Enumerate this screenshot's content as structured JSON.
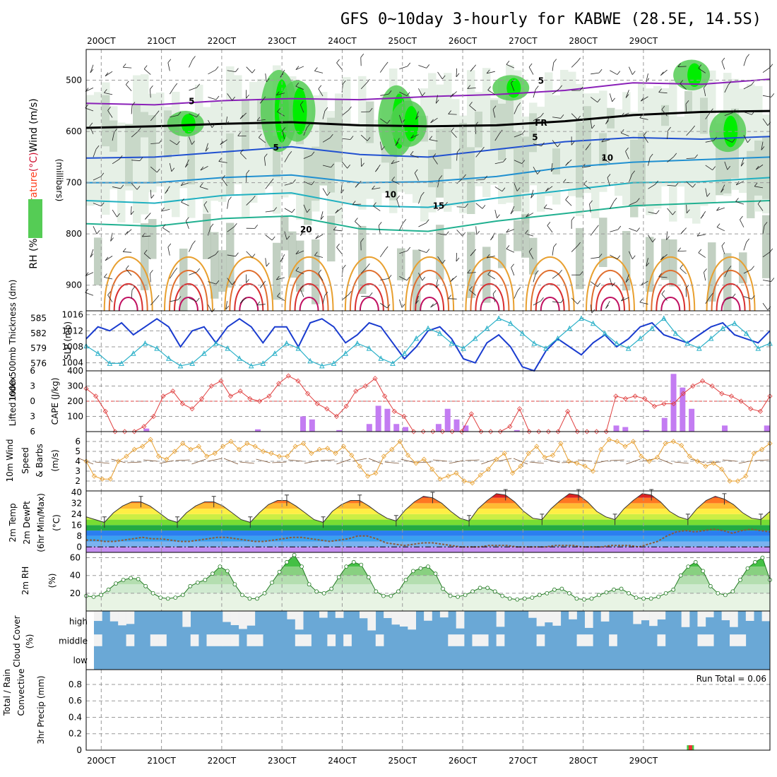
{
  "title": "GFS 0~10day 3-hourly for KABWE (28.5E, 14.5S)",
  "colors": {
    "frame": "#000000",
    "grid": "#9a9a9a",
    "rh_light": "#e6f0e6",
    "rh_mid": "#c8d8c8",
    "rh_dark": "#a8bca8",
    "rh_green": "#55cc55",
    "rh_bright": "#00ee00",
    "slp_line": "#1a3ccf",
    "thickness_line": "#2ab0c8",
    "lifted_line": "#e04040",
    "cape_bar": "#c37cf2",
    "wind_speed": "#e8a030",
    "wind_barb": "#7a5030",
    "cloud_blue": "#6aa8d6",
    "cloud_white": "#f2f2f2",
    "rh2m_fill": "#c8e6c0",
    "rh2m_line": "#227a22",
    "precip_green": "#44cc44",
    "precip_red": "#ee3333"
  },
  "chart_data": [
    {
      "type": "line",
      "panel": "upper-air",
      "ylabel": "(millibars)",
      "left_labels": [
        {
          "text": "RH (%)",
          "color": "#000000"
        },
        {
          "text": "Temperature",
          "color": "#ff4020"
        },
        {
          "text": "(°C)",
          "color": "#d01030"
        },
        {
          "text": "Wind (m/s)",
          "color": "#000000"
        }
      ],
      "yticks": [
        500,
        600,
        700,
        800,
        900
      ],
      "ylim": [
        440,
        950
      ],
      "x_top": [
        "20OCT",
        "21OCT",
        "22OCT",
        "23OCT",
        "24OCT",
        "25OCT",
        "26OCT",
        "27OCT",
        "28OCT",
        "29OCT"
      ],
      "contour_labels": [
        {
          "text": "5",
          "x": 1.5,
          "p": 540,
          "color": "#8a20b8"
        },
        {
          "text": "5",
          "x": 7.3,
          "p": 500,
          "color": "#8a20b8"
        },
        {
          "text": "FR",
          "x": 7.3,
          "p": 582,
          "color": "#000000"
        },
        {
          "text": "5",
          "x": 2.9,
          "p": 630,
          "color": "#2050d0"
        },
        {
          "text": "5",
          "x": 7.2,
          "p": 610,
          "color": "#2050d0"
        },
        {
          "text": "10",
          "x": 8.4,
          "p": 650,
          "color": "#2a90c8"
        },
        {
          "text": "10",
          "x": 4.8,
          "p": 722,
          "color": "#20a0c0"
        },
        {
          "text": "15",
          "x": 5.6,
          "p": 744,
          "color": "#20b0a0"
        },
        {
          "text": "20",
          "x": 3.4,
          "p": 790,
          "color": "#20b080"
        }
      ],
      "temp_lines": [
        {
          "name": "-5",
          "color": "#8a20b8",
          "values": [
            545,
            548,
            540,
            536,
            538,
            532,
            528,
            520,
            505,
            508,
            498
          ]
        },
        {
          "name": "0",
          "color": "#000000",
          "values": [
            593,
            590,
            585,
            582,
            588,
            590,
            588,
            580,
            568,
            562,
            560
          ]
        },
        {
          "name": "5",
          "color": "#2050d0",
          "values": [
            652,
            650,
            640,
            630,
            645,
            650,
            635,
            620,
            612,
            615,
            610
          ]
        },
        {
          "name": "10",
          "color": "#2090d0",
          "values": [
            700,
            700,
            690,
            685,
            700,
            698,
            688,
            670,
            660,
            655,
            650
          ]
        },
        {
          "name": "15",
          "color": "#20b0c0",
          "values": [
            735,
            740,
            725,
            720,
            745,
            748,
            730,
            715,
            700,
            698,
            690
          ]
        },
        {
          "name": "20",
          "color": "#20b090",
          "values": [
            780,
            785,
            770,
            765,
            790,
            795,
            775,
            760,
            745,
            740,
            735
          ]
        }
      ]
    },
    {
      "type": "line",
      "panel": "slp-thickness",
      "title_left": "1000-500mb Thickness (dm)",
      "ylabel_right": "SLP (mb)",
      "yticks_left": [
        576,
        579,
        582,
        585
      ],
      "yticks_right": [
        1004,
        1008,
        1012,
        1016
      ],
      "series": [
        {
          "name": "SLP",
          "axis": "right",
          "color": "#1a3ccf",
          "values": [
            1010,
            1013,
            1012,
            1014,
            1011,
            1013,
            1015,
            1013,
            1008,
            1012,
            1013,
            1009,
            1013,
            1015,
            1013,
            1009,
            1013,
            1013,
            1008,
            1014,
            1015,
            1013,
            1009,
            1011,
            1014,
            1013,
            1009,
            1005,
            1008,
            1012,
            1013,
            1010,
            1005,
            1004,
            1009,
            1011,
            1008,
            1003,
            1002,
            1007,
            1010,
            1008,
            1006,
            1009,
            1011,
            1008,
            1010,
            1013,
            1014,
            1011,
            1010,
            1009,
            1011,
            1013,
            1014,
            1011,
            1010,
            1009,
            1012
          ]
        },
        {
          "name": "Thickness",
          "axis": "left",
          "color": "#2ab0c8",
          "values": [
            579.5,
            578,
            576,
            576,
            578,
            580,
            579,
            577,
            575.5,
            576,
            578,
            580,
            579,
            577,
            575.5,
            576,
            578,
            580,
            579,
            576.5,
            575.5,
            576,
            578,
            580,
            579,
            577,
            576,
            578,
            581,
            583,
            582,
            580,
            579,
            581,
            583,
            585,
            584,
            582,
            580,
            579,
            581,
            583,
            585,
            584,
            582,
            580,
            579,
            581,
            583,
            585,
            582,
            580,
            579,
            581,
            583,
            584,
            582,
            579,
            580
          ]
        }
      ]
    },
    {
      "type": "bar",
      "panel": "stability",
      "left_label": "Lifted Index",
      "right_label": "CAPE (J/kg)",
      "yticks_left": [
        -6,
        -3,
        0,
        3,
        6
      ],
      "yticks_right": [
        100,
        200,
        300,
        400
      ],
      "ylim_cape": [
        0,
        400
      ],
      "lifted_index": [
        -2.5,
        -1,
        2,
        6,
        6,
        6,
        5,
        3,
        -1,
        -2,
        0.5,
        1.5,
        -0.5,
        -3,
        -4,
        -1,
        -2,
        -0.5,
        0,
        -1,
        -3.5,
        -5,
        -4,
        -1.5,
        0.5,
        1.5,
        3,
        1,
        -2,
        -3,
        -4.5,
        -1,
        2,
        3,
        6,
        6,
        6,
        6,
        6,
        6,
        2.5,
        6,
        6,
        6,
        5,
        1.5,
        6,
        6,
        6,
        6,
        2,
        6,
        6,
        6,
        6,
        -1,
        -0.5,
        -1,
        -0.5,
        1,
        0.5,
        0.5,
        -1.5,
        -3,
        -4,
        -3,
        -1.5,
        -1,
        0,
        1.5,
        2,
        -1
      ],
      "cape_bars": [
        {
          "x": 0.75,
          "v": 20
        },
        {
          "x": 2.6,
          "v": 15
        },
        {
          "x": 3.35,
          "v": 100
        },
        {
          "x": 3.5,
          "v": 80
        },
        {
          "x": 3.95,
          "v": 10
        },
        {
          "x": 4.45,
          "v": 50
        },
        {
          "x": 4.6,
          "v": 170
        },
        {
          "x": 4.75,
          "v": 150
        },
        {
          "x": 4.9,
          "v": 50
        },
        {
          "x": 5.05,
          "v": 30
        },
        {
          "x": 5.6,
          "v": 50
        },
        {
          "x": 5.75,
          "v": 150
        },
        {
          "x": 5.9,
          "v": 80
        },
        {
          "x": 6.05,
          "v": 40
        },
        {
          "x": 6.9,
          "v": 10
        },
        {
          "x": 8.55,
          "v": 40
        },
        {
          "x": 8.7,
          "v": 30
        },
        {
          "x": 9.05,
          "v": 10
        },
        {
          "x": 9.35,
          "v": 90
        },
        {
          "x": 9.5,
          "v": 380
        },
        {
          "x": 9.65,
          "v": 290
        },
        {
          "x": 9.8,
          "v": 150
        },
        {
          "x": 10.35,
          "v": 40
        },
        {
          "x": 11.05,
          "v": 40
        }
      ]
    },
    {
      "type": "line",
      "panel": "wind10m",
      "left_label": "10m Wind",
      "left_label2": "Speed",
      "left_label3": "& Barbs",
      "ylabel": "(m/s)",
      "yticks": [
        2,
        3,
        4,
        5,
        6
      ],
      "ylim": [
        1,
        7
      ],
      "speed": [
        4,
        2.5,
        2.2,
        2.2,
        4,
        4.5,
        5.2,
        5.5,
        6.2,
        4.5,
        4.2,
        5,
        5.8,
        5.2,
        5.5,
        4.5,
        4.8,
        5.5,
        6,
        5.2,
        5.8,
        5.5,
        5,
        4.8,
        4.5,
        4.5,
        5.5,
        5.8,
        4.8,
        5.2,
        5.3,
        4.8,
        5.5,
        4.6,
        3.5,
        2.5,
        2.8,
        4.5,
        5.2,
        6,
        4.6,
        3.8,
        4.2,
        3.2,
        2.2,
        2.5,
        2.8,
        2,
        1.8,
        2.6,
        3.2,
        4.2,
        4.8,
        2.8,
        3.5,
        4.8,
        5.5,
        4.4,
        4.6,
        5.8,
        4,
        3.8,
        3.5,
        3,
        5.2,
        6.2,
        6,
        5.5,
        6,
        4.5,
        4,
        4.4,
        5.8,
        6,
        5.6,
        4.5,
        4,
        3.5,
        3.8,
        3.2,
        2,
        2,
        2.5,
        4.8,
        5.2,
        5.8
      ]
    },
    {
      "type": "area",
      "panel": "temperature",
      "left_label": "2m Temp",
      "left_label2": "2m DewPt",
      "left_label3": "(6hr Min/Max)",
      "ylabel": "(°C)",
      "yticks": [
        0,
        8,
        16,
        24,
        32,
        40
      ],
      "ylim": [
        -4,
        41
      ],
      "temp": [
        22,
        20,
        18,
        25,
        30,
        33,
        33,
        30,
        25,
        20,
        18,
        25,
        30,
        33,
        33,
        30,
        25,
        20,
        18,
        25,
        31,
        34,
        34,
        30,
        25,
        20,
        18,
        26,
        31,
        34,
        34,
        30,
        25,
        21,
        19,
        27,
        33,
        37,
        36,
        32,
        26,
        21,
        19,
        28,
        34,
        39,
        38,
        33,
        26,
        21,
        20,
        28,
        34,
        39,
        38,
        33,
        26,
        22,
        20,
        28,
        34,
        39,
        38,
        33,
        26,
        22,
        20,
        28,
        34,
        37,
        35,
        31,
        25,
        21,
        20,
        26
      ],
      "dewpoint": [
        5,
        5,
        4,
        4,
        5,
        6,
        7,
        6,
        6,
        5,
        4,
        4,
        5,
        6,
        7,
        7,
        6,
        5,
        4,
        4,
        5,
        6,
        7,
        7,
        6,
        5,
        4,
        5,
        6,
        8,
        8,
        6,
        3,
        2,
        1,
        2,
        3,
        3,
        2,
        1,
        0,
        0,
        0,
        1,
        1,
        1,
        0,
        0,
        0,
        0,
        1,
        1,
        1,
        0,
        0,
        0,
        1,
        1,
        1,
        0,
        2,
        4,
        8,
        11,
        12,
        11,
        12,
        13,
        12,
        10,
        12,
        13,
        12,
        11
      ]
    },
    {
      "type": "area",
      "panel": "rh2m",
      "left_label": "2m RH",
      "ylabel": "(%)",
      "yticks": [
        20,
        40,
        60
      ],
      "ylim": [
        0,
        66
      ],
      "values": [
        17,
        16,
        18,
        24,
        31,
        35,
        37,
        36,
        28,
        20,
        15,
        14,
        15,
        18,
        28,
        32,
        35,
        42,
        50,
        45,
        30,
        18,
        14,
        14,
        20,
        32,
        44,
        55,
        63,
        50,
        30,
        22,
        20,
        25,
        38,
        50,
        55,
        52,
        38,
        22,
        17,
        17,
        22,
        35,
        45,
        48,
        50,
        42,
        25,
        17,
        16,
        18,
        22,
        26,
        26,
        22,
        17,
        14,
        13,
        14,
        15,
        18,
        20,
        24,
        25,
        20,
        14,
        13,
        14,
        18,
        21,
        24,
        25,
        20,
        15,
        14,
        14,
        16,
        20,
        24,
        40,
        50,
        55,
        45,
        28,
        20,
        18,
        22,
        35,
        48,
        55,
        60,
        35
      ]
    },
    {
      "type": "bar",
      "panel": "cloud-cover",
      "left_label": "Cloud Cover",
      "ylabel": "(%)",
      "categories": [
        "high",
        "middle",
        "low"
      ]
    },
    {
      "type": "bar",
      "panel": "precip",
      "left_label": "Total / Rain",
      "left_label2": "Convective",
      "ylabel": "3hr Precip (mm)",
      "yticks": [
        0,
        0.2,
        0.4,
        0.6,
        0.8
      ],
      "ylim": [
        0,
        0.98
      ],
      "run_total": "Run Total = 0.06",
      "bars": [
        {
          "x": 9.78,
          "total": 0.06,
          "convective": 0.06
        }
      ]
    }
  ],
  "x_axis": {
    "labels": [
      "20OCT",
      "21OCT",
      "22OCT",
      "23OCT",
      "24OCT",
      "25OCT",
      "26OCT",
      "27OCT",
      "28OCT",
      "29OCT"
    ],
    "range": [
      -0.25,
      11.1
    ]
  }
}
